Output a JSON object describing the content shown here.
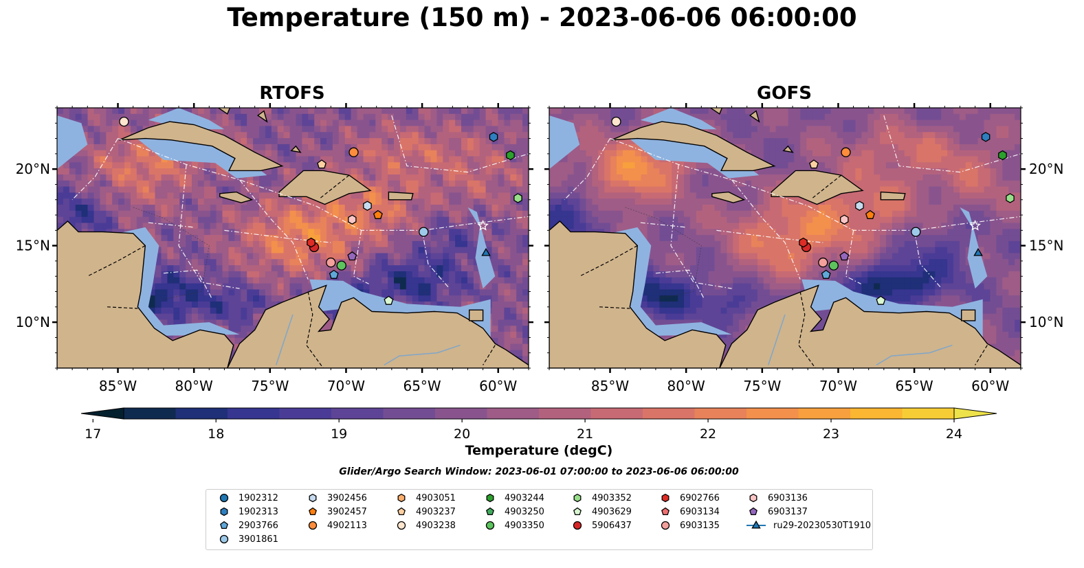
{
  "title": "Temperature (150 m) - 2023-06-06 06:00:00",
  "panels": [
    {
      "title": "RTOFS"
    },
    {
      "title": "GOFS"
    }
  ],
  "colors": {
    "land": "#d0b48c",
    "shelf": "#8fb3e0",
    "colormap": [
      "#04202e",
      "#0f2a4f",
      "#1f2f78",
      "#36358f",
      "#4a3c96",
      "#5e4496",
      "#734d93",
      "#89548e",
      "#9e5c87",
      "#b3627e",
      "#c76a74",
      "#d97568",
      "#e8825b",
      "#f3904c",
      "#f8a03d",
      "#fbb632",
      "#f7cd36",
      "#eee24a"
    ]
  },
  "chart_data": {
    "type": "heatmap",
    "xlabel": "",
    "ylabel": "",
    "xlim": [
      -89,
      -58
    ],
    "ylim": [
      7,
      24
    ],
    "x_ticks": [
      "85°W",
      "80°W",
      "75°W",
      "70°W",
      "65°W",
      "60°W"
    ],
    "x_tick_values": [
      -85,
      -80,
      -75,
      -70,
      -65,
      -60
    ],
    "y_ticks": [
      "20°N",
      "15°N",
      "10°N"
    ],
    "y_tick_values": [
      20,
      15,
      10
    ],
    "colorbar": {
      "label": "Temperature (degC)",
      "min": 16.75,
      "max": 24.5,
      "step": 0.5,
      "ticks": [
        17,
        18,
        19,
        20,
        21,
        22,
        23,
        24
      ],
      "extend": "both"
    },
    "search_window": "Glider/Argo Search Window: 2023-06-01 07:00:00 to 2023-06-06 06:00:00",
    "legend_placement": "bottom-center",
    "platforms": [
      {
        "id": "1902312",
        "marker": "circle",
        "color": "#1f77b4",
        "lon": null,
        "lat": null
      },
      {
        "id": "1902313",
        "marker": "hexagon",
        "color": "#2e7fc0",
        "lon": -60.3,
        "lat": 22.1
      },
      {
        "id": "2903766",
        "marker": "pentagon",
        "color": "#5fa8d9",
        "lon": -70.8,
        "lat": 13.1
      },
      {
        "id": "3901861",
        "marker": "circle",
        "color": "#9ecae9",
        "lon": -64.9,
        "lat": 15.9
      },
      {
        "id": "3902456",
        "marker": "hexagon",
        "color": "#c6dbef",
        "lon": -68.6,
        "lat": 17.6
      },
      {
        "id": "3902457",
        "marker": "pentagon",
        "color": "#ff7f0e",
        "lon": -67.9,
        "lat": 17.0
      },
      {
        "id": "4902113",
        "marker": "circle",
        "color": "#fd8d3c",
        "lon": -69.5,
        "lat": 21.1
      },
      {
        "id": "4903051",
        "marker": "hexagon",
        "color": "#fdae6b",
        "lon": null,
        "lat": null
      },
      {
        "id": "4903237",
        "marker": "pentagon",
        "color": "#fdd0a2",
        "lon": -71.6,
        "lat": 20.3
      },
      {
        "id": "4903238",
        "marker": "circle",
        "color": "#fee6ce",
        "lon": -84.6,
        "lat": 23.1
      },
      {
        "id": "4903244",
        "marker": "hexagon",
        "color": "#2ca02c",
        "lon": -59.2,
        "lat": 20.9
      },
      {
        "id": "4903250",
        "marker": "pentagon",
        "color": "#41ab5d",
        "lon": null,
        "lat": null
      },
      {
        "id": "4903350",
        "marker": "circle",
        "color": "#5dc35d",
        "lon": -70.3,
        "lat": 13.7
      },
      {
        "id": "4903352",
        "marker": "hexagon",
        "color": "#98df8a",
        "lon": -58.7,
        "lat": 18.1
      },
      {
        "id": "4903629",
        "marker": "pentagon",
        "color": "#d9f7d0",
        "lon": -67.2,
        "lat": 11.4
      },
      {
        "id": "5906437",
        "marker": "circle",
        "color": "#d62728",
        "lon": -72.1,
        "lat": 14.9
      },
      {
        "id": "6902766",
        "marker": "hexagon",
        "color": "#de2d26",
        "lon": -72.3,
        "lat": 15.2
      },
      {
        "id": "6903134",
        "marker": "pentagon",
        "color": "#ef6f70",
        "lon": null,
        "lat": null
      },
      {
        "id": "6903135",
        "marker": "circle",
        "color": "#f4a09c",
        "lon": -71.0,
        "lat": 13.9
      },
      {
        "id": "6903136",
        "marker": "hexagon",
        "color": "#fbc5c5",
        "lon": -69.6,
        "lat": 16.7
      },
      {
        "id": "6903137",
        "marker": "pentagon",
        "color": "#9467bd",
        "lon": -69.6,
        "lat": 14.3
      },
      {
        "id": "ru29-20230530T1910",
        "marker": "triangle",
        "color": "#1f77b4",
        "lon": -60.8,
        "lat": 14.5,
        "line": true
      }
    ],
    "pentagon_outline_marker": {
      "lon": -61.0,
      "lat": 16.3
    }
  }
}
